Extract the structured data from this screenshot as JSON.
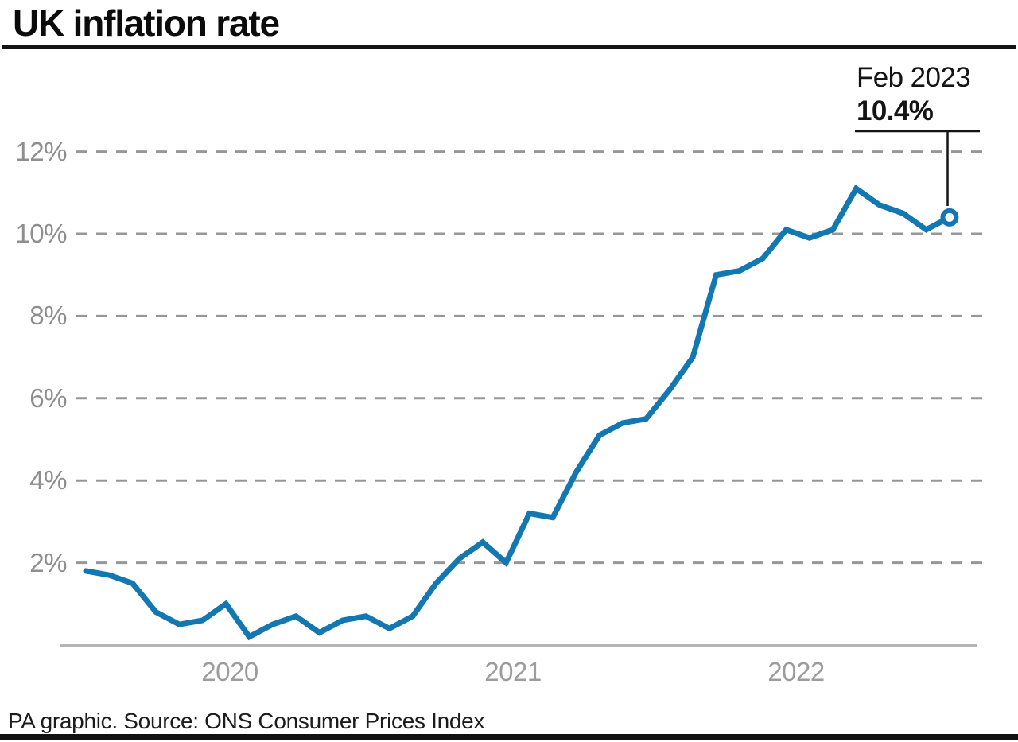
{
  "title": "UK inflation rate",
  "annotation": {
    "label": "Feb 2023",
    "value": "10.4%"
  },
  "footer": {
    "source": "PA graphic. Source: ONS Consumer Prices Index"
  },
  "colors": {
    "line": "#1377b2",
    "grid": "#979797",
    "axis_line": "#b5b5b5",
    "y_tick_text": "#8e8e8e",
    "x_tick_text": "#9c9c9c",
    "annotation_line": "#141414",
    "title_text": "#0b0b0b",
    "footer_text": "#1c1c1c",
    "marker_fill": "#ffffff"
  },
  "chart_data": {
    "type": "line",
    "title": "UK inflation rate",
    "x": [
      "Jan 2020",
      "Feb 2020",
      "Mar 2020",
      "Apr 2020",
      "May 2020",
      "Jun 2020",
      "Jul 2020",
      "Aug 2020",
      "Sep 2020",
      "Oct 2020",
      "Nov 2020",
      "Dec 2020",
      "Jan 2021",
      "Feb 2021",
      "Mar 2021",
      "Apr 2021",
      "May 2021",
      "Jun 2021",
      "Jul 2021",
      "Aug 2021",
      "Sep 2021",
      "Oct 2021",
      "Nov 2021",
      "Dec 2021",
      "Jan 2022",
      "Feb 2022",
      "Mar 2022",
      "Apr 2022",
      "May 2022",
      "Jun 2022",
      "Jul 2022",
      "Aug 2022",
      "Sep 2022",
      "Oct 2022",
      "Nov 2022",
      "Dec 2022",
      "Jan 2023",
      "Feb 2023"
    ],
    "series": [
      {
        "name": "UK CPI annual inflation rate",
        "values": [
          1.8,
          1.7,
          1.5,
          0.8,
          0.5,
          0.6,
          1.0,
          0.2,
          0.5,
          0.7,
          0.3,
          0.6,
          0.7,
          0.4,
          0.7,
          1.5,
          2.1,
          2.5,
          2.0,
          3.2,
          3.1,
          4.2,
          5.1,
          5.4,
          5.5,
          6.2,
          7.0,
          9.0,
          9.1,
          9.4,
          10.1,
          9.9,
          10.1,
          11.1,
          10.7,
          10.5,
          10.1,
          10.4
        ]
      }
    ],
    "yticks": [
      2,
      4,
      6,
      8,
      10,
      12
    ],
    "ytick_suffix": "%",
    "xticks": [
      "2020",
      "2021",
      "2022"
    ],
    "ylim": [
      0,
      12.5
    ],
    "xlabel": "",
    "ylabel": "",
    "grid": "horizontal-dashed",
    "legend": "none",
    "last_point": {
      "x": "Feb 2023",
      "y": 10.4,
      "marker": "open-circle"
    }
  }
}
